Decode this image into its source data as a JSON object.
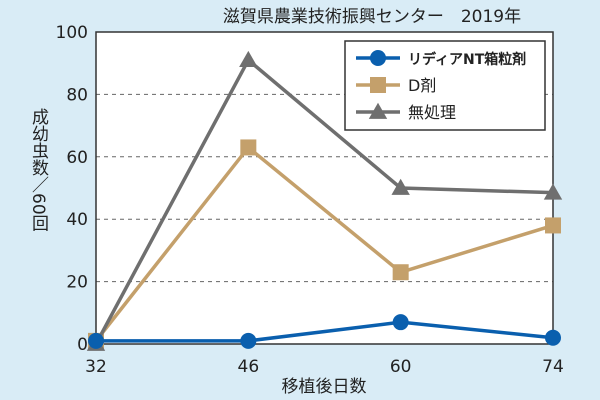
{
  "chart_data": {
    "type": "line",
    "title": "滋賀県農業技術振興センター　2019年",
    "xlabel": "移植後日数",
    "ylabel": "成幼虫数／60回",
    "x": [
      32,
      46,
      60,
      74
    ],
    "x_ticks": [
      "32",
      "46",
      "60",
      "74"
    ],
    "y_ticks": [
      "0",
      "20",
      "40",
      "60",
      "80",
      "100"
    ],
    "ylim": [
      0,
      100
    ],
    "grid": "horizontal dashed",
    "legend_position": "top-right",
    "series": [
      {
        "name": "リディアNT箱粒剤",
        "values": [
          1,
          1,
          7,
          2
        ],
        "color": "#0a5fae",
        "marker": "circle"
      },
      {
        "name": "D剤",
        "values": [
          1,
          63,
          23,
          38
        ],
        "color": "#c4a06b",
        "marker": "square"
      },
      {
        "name": "無処理",
        "values": [
          0,
          91,
          50,
          48.5
        ],
        "color": "#6f6f6f",
        "marker": "triangle"
      }
    ]
  }
}
